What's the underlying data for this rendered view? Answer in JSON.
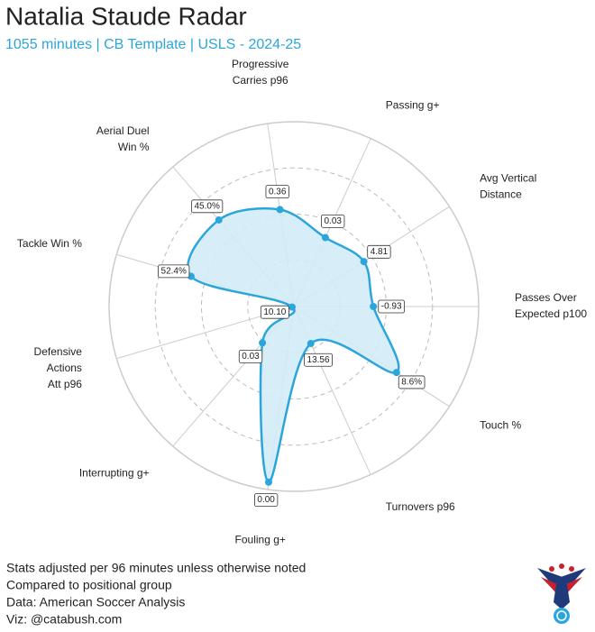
{
  "chart_data": {
    "type": "radar",
    "title": "Natalia Staude Radar",
    "subtitle": "1055 minutes | CB Template | USLS - 2024-25",
    "categories": [
      [
        "Passes Over",
        "Expected p100"
      ],
      [
        "Touch %"
      ],
      [
        "Turnovers p96"
      ],
      [
        "Fouling g+"
      ],
      [
        "Interrupting g+"
      ],
      [
        "Defensive",
        "Actions",
        "Att p96"
      ],
      [
        "Tackle Win %"
      ],
      [
        "Aerial Duel",
        "Win %"
      ],
      [
        "Progressive",
        "Carries p96"
      ],
      [
        "Passing g+"
      ],
      [
        "Avg Vertical",
        "Distance"
      ]
    ],
    "values": [
      43,
      66,
      22,
      96,
      26,
      1,
      58,
      62,
      53,
      41,
      45
    ],
    "value_labels": [
      "-0.93",
      "8.6%",
      "13.56",
      "0.00",
      "0.03",
      "10.10",
      "52.4%",
      "45.0%",
      "0.36",
      "0.03",
      "4.81"
    ],
    "ylim": [
      0,
      100
    ],
    "color": "#2ba6dc",
    "fill": "#d3ebf7"
  },
  "footer": {
    "lines": [
      "Stats adjusted per 96 minutes unless otherwise noted",
      "Compared to positional group",
      "Data: American Soccer Analysis",
      "Viz: @catabush.com"
    ]
  }
}
